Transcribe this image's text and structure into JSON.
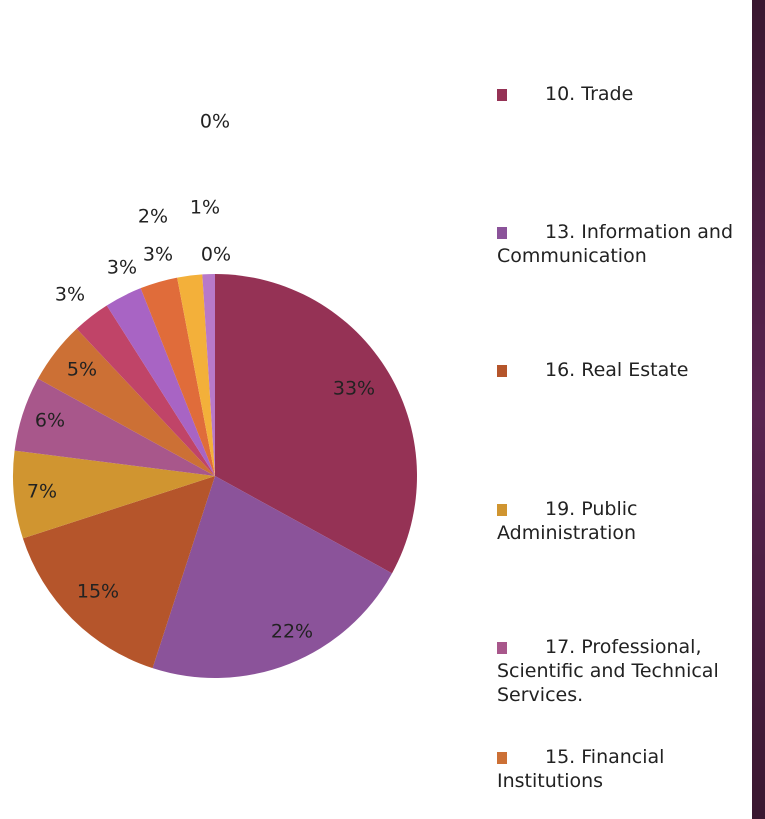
{
  "chart_data": {
    "type": "pie",
    "categories": [
      "10. Trade",
      "13. Information and Communication",
      "16. Real Estate",
      "19. Public Administration",
      "17. Professional, Scientific and Technical Services.",
      "15. Financial Institutions",
      null,
      null,
      null,
      null,
      null,
      null,
      null
    ],
    "values": [
      33,
      22,
      15,
      7,
      6,
      5,
      3,
      3,
      3,
      2,
      1,
      0,
      0
    ],
    "value_labels": [
      "33%",
      "22%",
      "15%",
      "7%",
      "6%",
      "5%",
      "3%",
      "3%",
      "3%",
      "2%",
      "1%",
      "0%",
      "0%"
    ],
    "colors": [
      "#953255",
      "#8b539a",
      "#b5552b",
      "#d09530",
      "#a8578b",
      "#cc7035",
      "#c04468",
      "#a864c4",
      "#e06c3a",
      "#f3b03a",
      "#b879c9",
      "#d6669a",
      "#e0a070"
    ]
  }
}
